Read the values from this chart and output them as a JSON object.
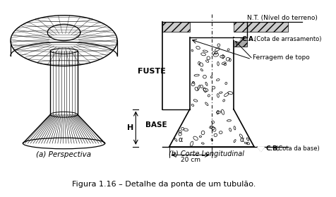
{
  "title": "Figura 1.16 – Detalhe da ponta de um tubulão.",
  "label_a": "(a) Perspectiva",
  "label_b": "(b) Corte Longitudinal",
  "label_fuste": "FUSTE",
  "label_base": "BASE",
  "label_h": "H",
  "label_20cm": "20 cm",
  "label_nt": "N.T. (Nível do terreno)",
  "label_ca": "C.A.",
  "label_ca2": "(Cota de arrasamento)",
  "label_ferragem": "Ferragem de topo",
  "label_cb": "C.B.",
  "label_cb2": "(Cota da base)",
  "label_alpha": "α",
  "bg_color": "#ffffff",
  "line_color": "#000000"
}
